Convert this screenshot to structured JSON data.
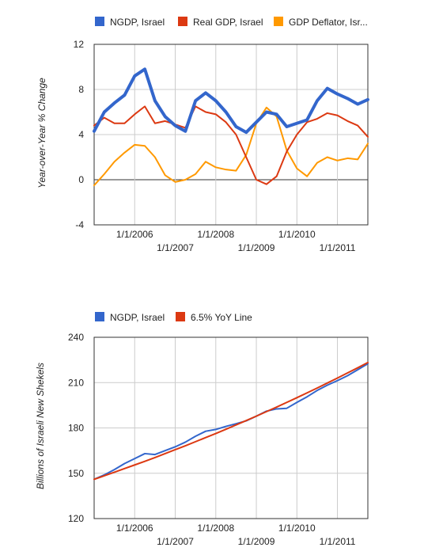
{
  "chart_data": [
    {
      "type": "line",
      "legend_position": "top",
      "title": "",
      "xlabel": "",
      "ylabel": "Year-over-Year % Change",
      "ylim": [
        -4,
        12
      ],
      "yticks": [
        "12",
        "8",
        "4",
        "0",
        "-4"
      ],
      "xlim": [
        2005.0,
        2011.75
      ],
      "x_tick_labels": [
        "1/1/2006",
        "1/1/2007",
        "1/1/2008",
        "1/1/2009",
        "1/1/2010",
        "1/1/2011"
      ],
      "grid": true,
      "x": [
        2005.0,
        2005.25,
        2005.5,
        2005.75,
        2006.0,
        2006.25,
        2006.5,
        2006.75,
        2007.0,
        2007.25,
        2007.5,
        2007.75,
        2008.0,
        2008.25,
        2008.5,
        2008.75,
        2009.0,
        2009.25,
        2009.5,
        2009.75,
        2010.0,
        2010.25,
        2010.5,
        2010.75,
        2011.0,
        2011.25,
        2011.5,
        2011.75
      ],
      "series": [
        {
          "name": "NGDP, Israel",
          "color": "#3366cc",
          "width": 4,
          "values": [
            4.3,
            6.0,
            6.8,
            7.5,
            9.2,
            9.8,
            7.0,
            5.6,
            4.8,
            4.3,
            7.0,
            7.7,
            7.0,
            6.0,
            4.7,
            4.2,
            5.1,
            6.0,
            5.8,
            4.7,
            5.0,
            5.3,
            7.0,
            8.1,
            7.6,
            7.2,
            6.7,
            7.1
          ]
        },
        {
          "name": "Real GDP, Israel",
          "color": "#dc3912",
          "width": 2,
          "values": [
            4.8,
            5.5,
            5.0,
            5.0,
            5.8,
            6.5,
            5.0,
            5.2,
            4.9,
            4.6,
            6.5,
            6.0,
            5.8,
            5.1,
            4.0,
            2.0,
            0.0,
            -0.4,
            0.3,
            2.5,
            4.0,
            5.1,
            5.4,
            5.9,
            5.7,
            5.2,
            4.8,
            3.8
          ]
        },
        {
          "name": "GDP Deflator, Isr...",
          "color": "#ff9900",
          "width": 2,
          "values": [
            -0.5,
            0.5,
            1.6,
            2.4,
            3.1,
            3.0,
            2.0,
            0.4,
            -0.2,
            0.0,
            0.5,
            1.6,
            1.1,
            0.9,
            0.8,
            2.2,
            5.0,
            6.4,
            5.6,
            2.6,
            1.0,
            0.3,
            1.5,
            2.0,
            1.7,
            1.9,
            1.8,
            3.2
          ]
        }
      ]
    },
    {
      "type": "line",
      "legend_position": "top",
      "title": "",
      "xlabel": "",
      "ylabel": "Billions of Israeli New Shekels",
      "ylim": [
        120,
        240
      ],
      "yticks": [
        "240",
        "210",
        "180",
        "150",
        "120"
      ],
      "xlim": [
        2005.0,
        2011.75
      ],
      "x_tick_labels": [
        "1/1/2006",
        "1/1/2007",
        "1/1/2008",
        "1/1/2009",
        "1/1/2010",
        "1/1/2011"
      ],
      "grid": true,
      "x": [
        2005.0,
        2005.25,
        2005.5,
        2005.75,
        2006.0,
        2006.25,
        2006.5,
        2006.75,
        2007.0,
        2007.25,
        2007.5,
        2007.75,
        2008.0,
        2008.25,
        2008.5,
        2008.75,
        2009.0,
        2009.25,
        2009.5,
        2009.75,
        2010.0,
        2010.25,
        2010.5,
        2010.75,
        2011.0,
        2011.25,
        2011.5,
        2011.75
      ],
      "series": [
        {
          "name": "NGDP, Israel",
          "color": "#3366cc",
          "width": 2,
          "values": [
            146.0,
            148.9,
            152.4,
            156.4,
            159.7,
            163.0,
            162.4,
            165.0,
            167.5,
            170.6,
            174.5,
            177.8,
            179.0,
            181.0,
            182.8,
            184.7,
            187.8,
            191.1,
            192.6,
            193.0,
            196.9,
            200.6,
            204.8,
            208.3,
            211.3,
            214.6,
            218.5,
            222.5
          ]
        },
        {
          "name": "6.5% YoY Line",
          "color": "#dc3912",
          "width": 2,
          "values": [
            146.0,
            148.3,
            150.7,
            153.1,
            155.5,
            157.9,
            160.4,
            163.0,
            165.6,
            168.2,
            170.9,
            173.6,
            176.3,
            179.1,
            182.0,
            184.9,
            187.8,
            190.8,
            193.8,
            196.9,
            200.0,
            203.2,
            206.4,
            209.7,
            213.0,
            216.4,
            219.8,
            223.3
          ]
        }
      ]
    }
  ]
}
